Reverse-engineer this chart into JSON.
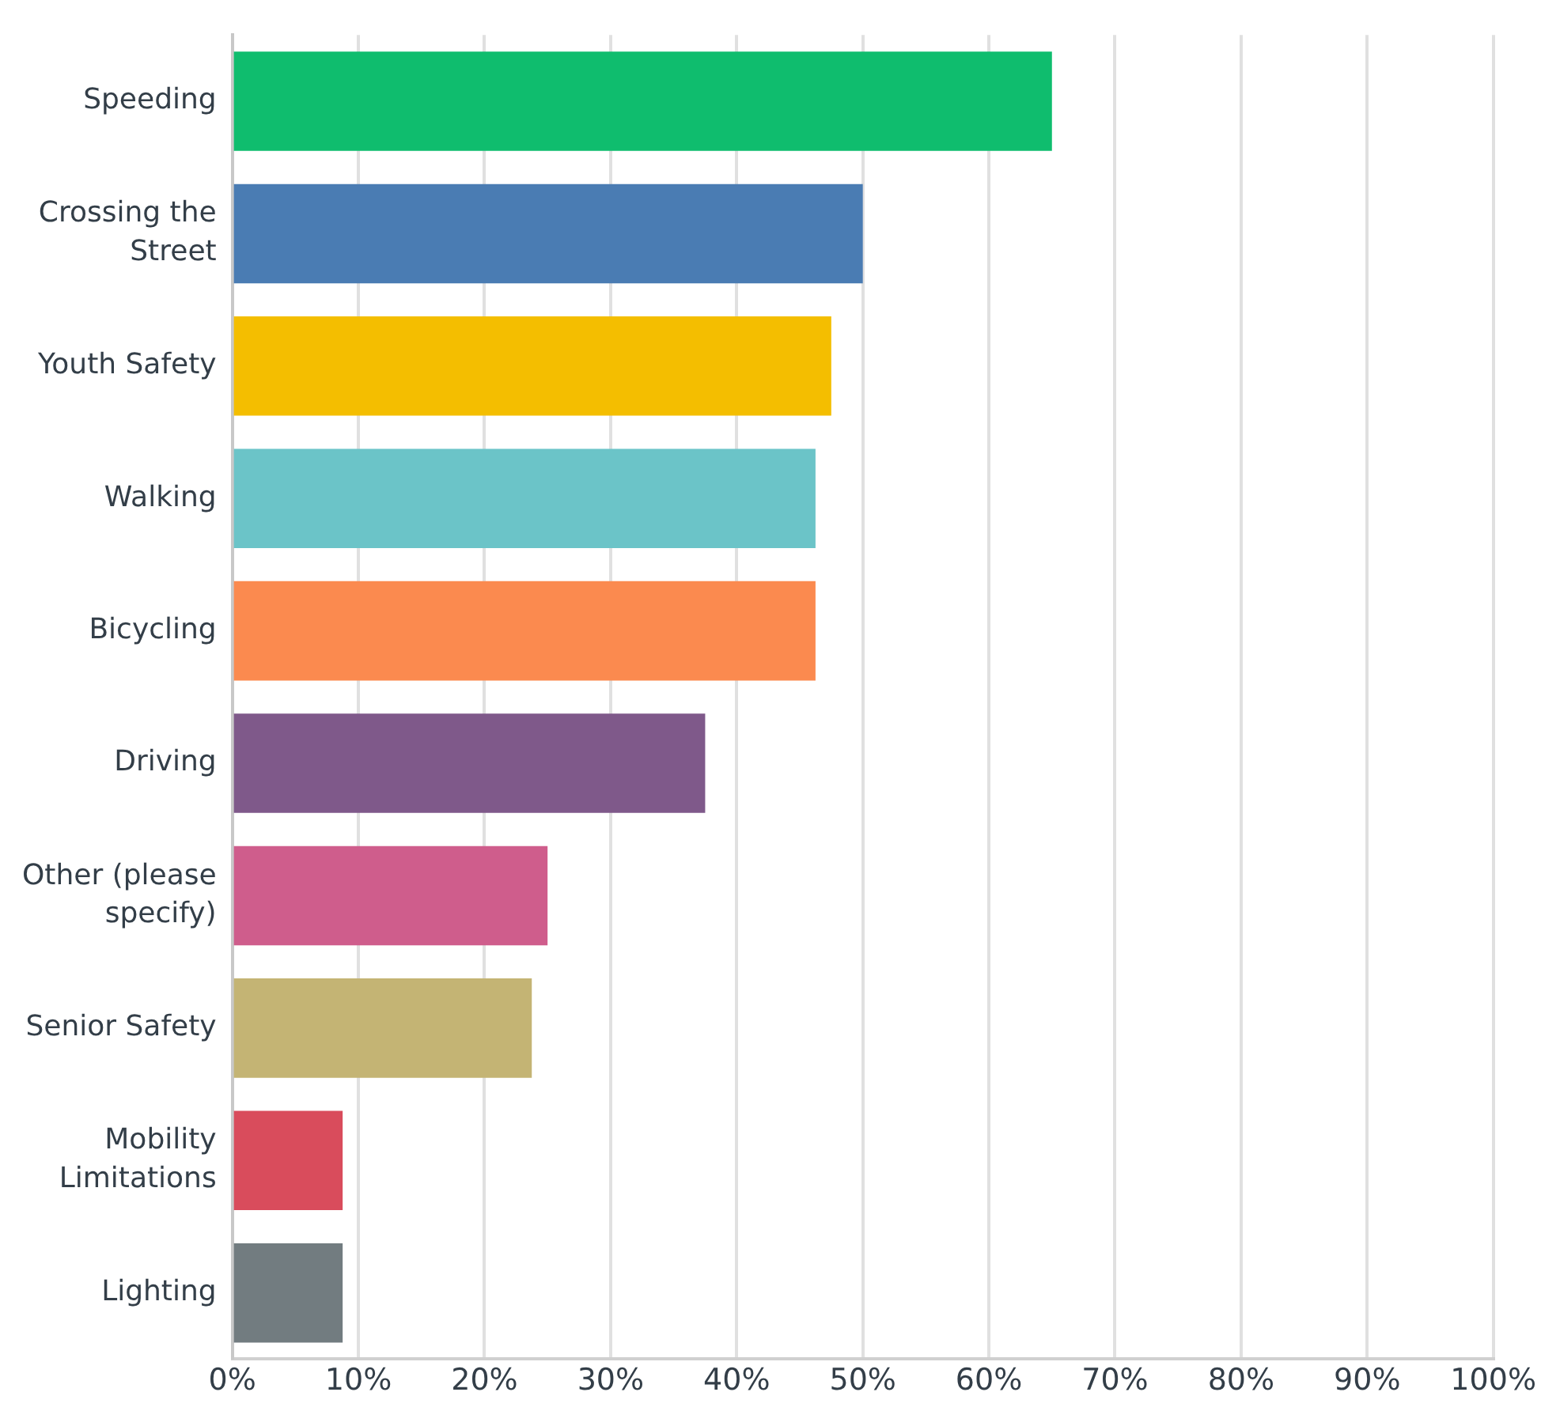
{
  "chart_data": {
    "type": "bar",
    "orientation": "horizontal",
    "categories": [
      "Speeding",
      "Crossing the Street",
      "Youth Safety",
      "Walking",
      "Bicycling",
      "Driving",
      "Other (please specify)",
      "Senior Safety",
      "Mobility Limitations",
      "Lighting"
    ],
    "values": [
      65,
      50,
      47.5,
      46.25,
      46.25,
      37.5,
      25,
      23.75,
      8.75,
      8.75
    ],
    "colors": [
      "#0fbd6e",
      "#4a7cb3",
      "#f4be00",
      "#6bc4c8",
      "#fb8a4f",
      "#7f598a",
      "#cf5d8c",
      "#c4b474",
      "#d94c5c",
      "#727c80"
    ],
    "xlim": [
      0,
      100
    ],
    "xticks": [
      {
        "value": 0,
        "label": "0%"
      },
      {
        "value": 10,
        "label": "10%"
      },
      {
        "value": 20,
        "label": "20%"
      },
      {
        "value": 30,
        "label": "30%"
      },
      {
        "value": 40,
        "label": "40%"
      },
      {
        "value": 50,
        "label": "50%"
      },
      {
        "value": 60,
        "label": "60%"
      },
      {
        "value": 70,
        "label": "70%"
      },
      {
        "value": 80,
        "label": "80%"
      },
      {
        "value": 90,
        "label": "90%"
      },
      {
        "value": 100,
        "label": "100%"
      }
    ],
    "grid": "x"
  }
}
